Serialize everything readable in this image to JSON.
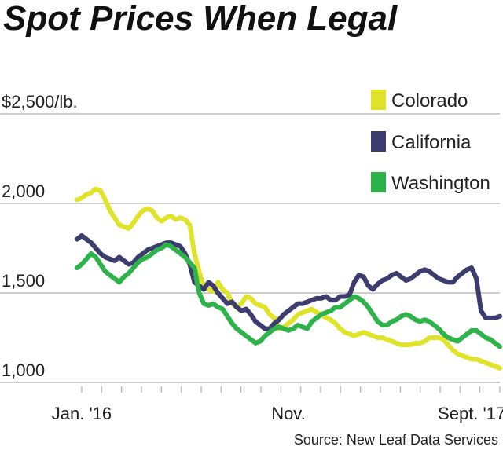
{
  "chart_data": {
    "type": "line",
    "title": "Spot Prices When Legal",
    "ylabel": "",
    "xlabel": "",
    "unit_label": "$2,500/lb.",
    "ylim": [
      1000,
      2500
    ],
    "yticks": [
      {
        "value": 2500,
        "label": "$2,500/lb."
      },
      {
        "value": 2000,
        "label": "2,000"
      },
      {
        "value": 1500,
        "label": "1,500"
      },
      {
        "value": 1000,
        "label": "1,000"
      }
    ],
    "xlim": [
      0,
      90
    ],
    "xticks": [
      {
        "value": 1,
        "label": "Jan. '16"
      },
      {
        "value": 45,
        "label": "Nov."
      },
      {
        "value": 84,
        "label": "Sept. '17"
      }
    ],
    "grid": true,
    "legend": "top-right",
    "source": "Source: New Leaf Data Services",
    "series": [
      {
        "name": "Colorado",
        "color": "#dfe32a",
        "values": [
          2020,
          2030,
          2050,
          2060,
          2080,
          2070,
          2020,
          1960,
          1920,
          1880,
          1870,
          1860,
          1890,
          1930,
          1960,
          1970,
          1960,
          1920,
          1900,
          1920,
          1930,
          1910,
          1920,
          1910,
          1880,
          1720,
          1620,
          1530,
          1520,
          1510,
          1560,
          1520,
          1500,
          1440,
          1420,
          1440,
          1480,
          1470,
          1440,
          1430,
          1420,
          1380,
          1360,
          1300,
          1310,
          1330,
          1350,
          1380,
          1390,
          1400,
          1410,
          1390,
          1380,
          1360,
          1350,
          1330,
          1300,
          1280,
          1270,
          1260,
          1270,
          1280,
          1270,
          1260,
          1250,
          1250,
          1240,
          1230,
          1220,
          1210,
          1210,
          1210,
          1220,
          1220,
          1230,
          1250,
          1250,
          1250,
          1240,
          1210,
          1180,
          1160,
          1150,
          1140,
          1130,
          1130,
          1120,
          1110,
          1100,
          1090,
          1080
        ]
      },
      {
        "name": "California",
        "color": "#3c3d6e",
        "values": [
          1800,
          1820,
          1800,
          1780,
          1750,
          1720,
          1700,
          1690,
          1680,
          1700,
          1680,
          1660,
          1670,
          1700,
          1720,
          1740,
          1750,
          1760,
          1770,
          1780,
          1780,
          1770,
          1760,
          1720,
          1660,
          1560,
          1540,
          1520,
          1560,
          1540,
          1500,
          1470,
          1440,
          1450,
          1420,
          1400,
          1410,
          1380,
          1340,
          1320,
          1300,
          1300,
          1330,
          1350,
          1380,
          1400,
          1420,
          1440,
          1440,
          1450,
          1460,
          1470,
          1470,
          1480,
          1460,
          1460,
          1480,
          1480,
          1490,
          1560,
          1600,
          1590,
          1540,
          1520,
          1550,
          1570,
          1580,
          1600,
          1610,
          1590,
          1570,
          1580,
          1600,
          1620,
          1630,
          1620,
          1600,
          1580,
          1570,
          1560,
          1560,
          1590,
          1610,
          1630,
          1640,
          1580,
          1400,
          1360,
          1360,
          1360,
          1370
        ]
      },
      {
        "name": "Washington",
        "color": "#2db34a",
        "values": [
          1640,
          1660,
          1690,
          1720,
          1700,
          1660,
          1620,
          1600,
          1580,
          1560,
          1590,
          1610,
          1640,
          1670,
          1690,
          1700,
          1720,
          1740,
          1750,
          1770,
          1760,
          1740,
          1720,
          1700,
          1670,
          1640,
          1500,
          1440,
          1430,
          1440,
          1420,
          1410,
          1370,
          1330,
          1300,
          1280,
          1260,
          1240,
          1220,
          1230,
          1260,
          1280,
          1300,
          1310,
          1300,
          1290,
          1300,
          1320,
          1310,
          1300,
          1340,
          1360,
          1380,
          1390,
          1400,
          1420,
          1420,
          1440,
          1460,
          1480,
          1470,
          1450,
          1420,
          1380,
          1340,
          1320,
          1320,
          1340,
          1350,
          1370,
          1380,
          1370,
          1350,
          1340,
          1350,
          1340,
          1320,
          1300,
          1270,
          1250,
          1240,
          1230,
          1250,
          1270,
          1290,
          1290,
          1270,
          1250,
          1240,
          1220,
          1200
        ]
      }
    ]
  }
}
